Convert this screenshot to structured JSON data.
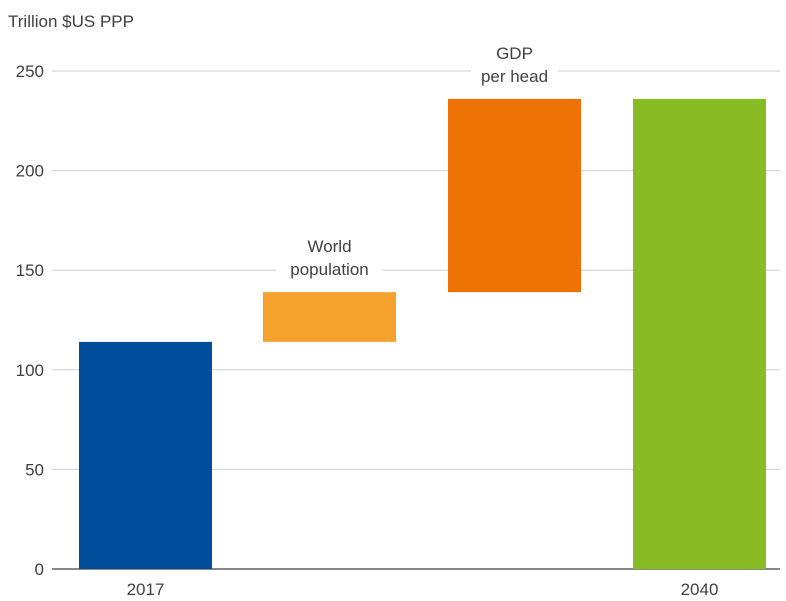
{
  "chart_data": {
    "type": "bar",
    "subtype": "waterfall",
    "unit_label": "Trillion $US PPP",
    "ylim": [
      0,
      250
    ],
    "yticks": [
      0,
      50,
      100,
      150,
      200,
      250
    ],
    "grid": true,
    "bars": [
      {
        "category": "2017",
        "label": "",
        "start": 0,
        "end": 114,
        "color": "#004d9b"
      },
      {
        "category": "",
        "label": "World population",
        "label_lines": [
          "World",
          "population"
        ],
        "start": 114,
        "end": 139,
        "color": "#f5a22d"
      },
      {
        "category": "",
        "label": "GDP per head",
        "label_lines": [
          "GDP",
          "per head"
        ],
        "start": 139,
        "end": 236,
        "color": "#ee7203"
      },
      {
        "category": "2040",
        "label": "",
        "start": 0,
        "end": 236,
        "color": "#87bc25"
      }
    ]
  }
}
